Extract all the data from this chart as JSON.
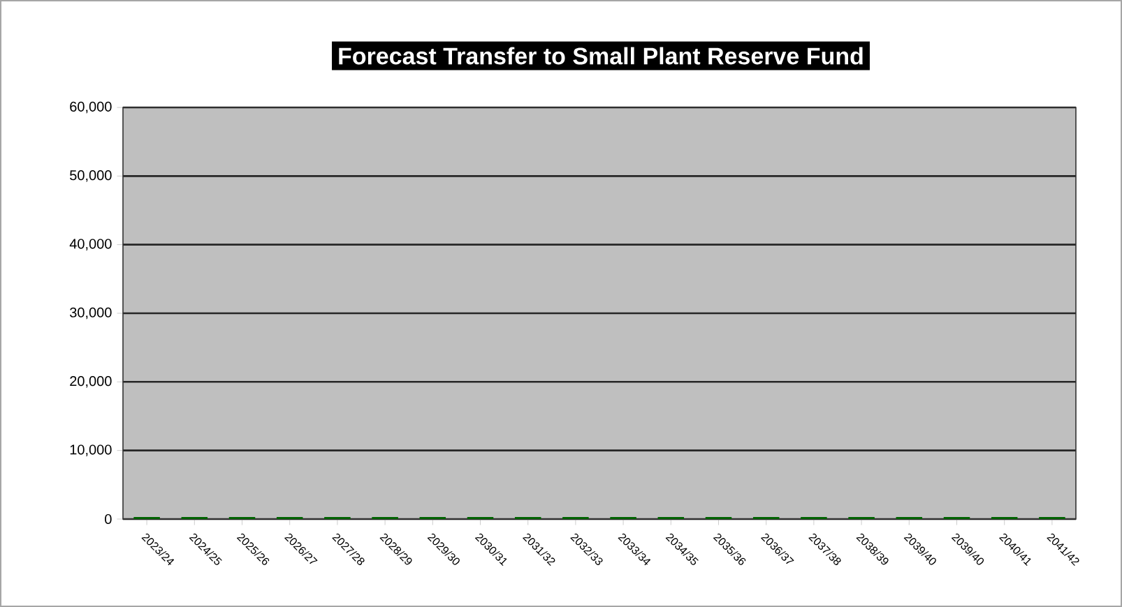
{
  "chart_data": {
    "type": "bar",
    "title": "Forecast Transfer to Small Plant Reserve Fund",
    "categories": [
      "2023/24",
      "2024/25",
      "2025/26",
      "2026/27",
      "2027/28",
      "2028/29",
      "2029/30",
      "2030/31",
      "2031/32",
      "2032/33",
      "2033/34",
      "2034/35",
      "2035/36",
      "2036/37",
      "2037/38",
      "2038/39",
      "2039/40",
      "2039/40",
      "2040/41",
      "2041/42"
    ],
    "values": [
      0,
      0,
      0,
      0,
      0,
      0,
      0,
      0,
      0,
      0,
      0,
      0,
      0,
      0,
      0,
      0,
      0,
      0,
      0,
      0
    ],
    "color": "#006400",
    "ylim": [
      0,
      60000
    ],
    "yticks": [
      0,
      {
        "value": 10000,
        "label": "10,000"
      },
      {
        "value": 20000,
        "label": "20,000"
      },
      {
        "value": 30000,
        "label": "30,000"
      },
      {
        "value": 40000,
        "label": "40,000"
      },
      {
        "value": 50000,
        "label": "50,000"
      },
      {
        "value": 60000,
        "label": "60,000"
      }
    ],
    "grid": true
  }
}
